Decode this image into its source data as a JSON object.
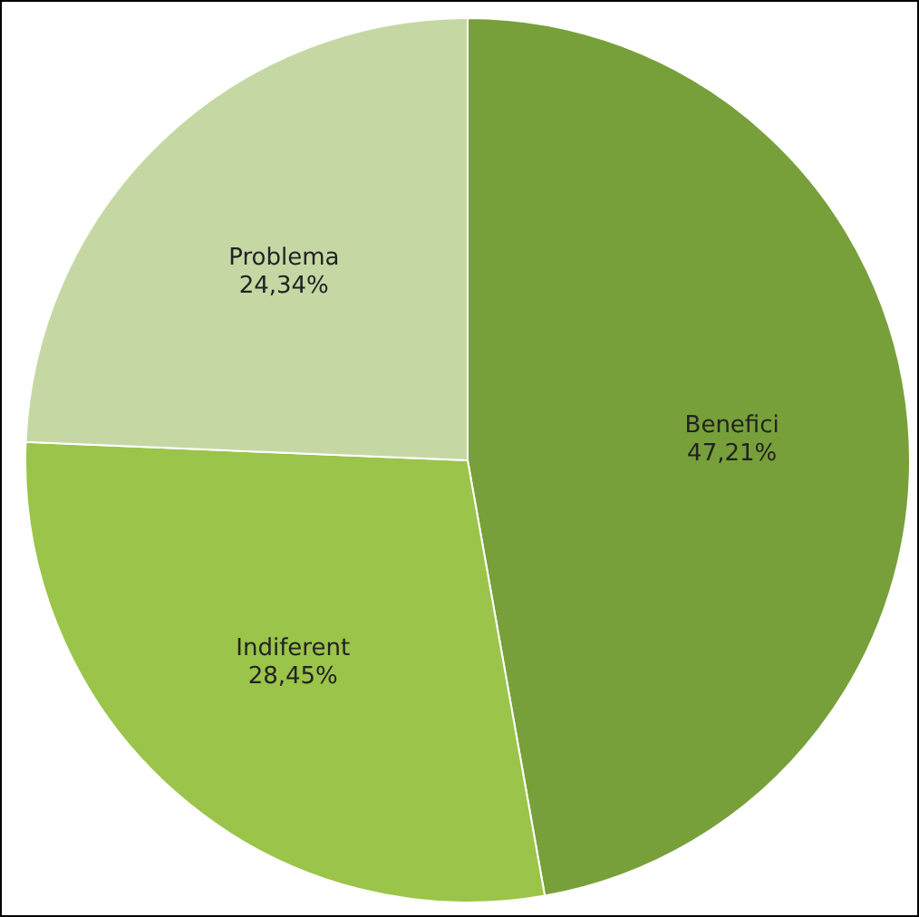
{
  "chart_data": {
    "type": "pie",
    "categories": [
      "Benefici",
      "Indiferent",
      "Problema"
    ],
    "values": [
      47.21,
      28.45,
      24.34
    ],
    "colors": [
      "#77a03a",
      "#9bc44a",
      "#c5d8a4"
    ],
    "value_labels": [
      "47,21%",
      "28,45%",
      "24,34%"
    ],
    "legend": false
  }
}
